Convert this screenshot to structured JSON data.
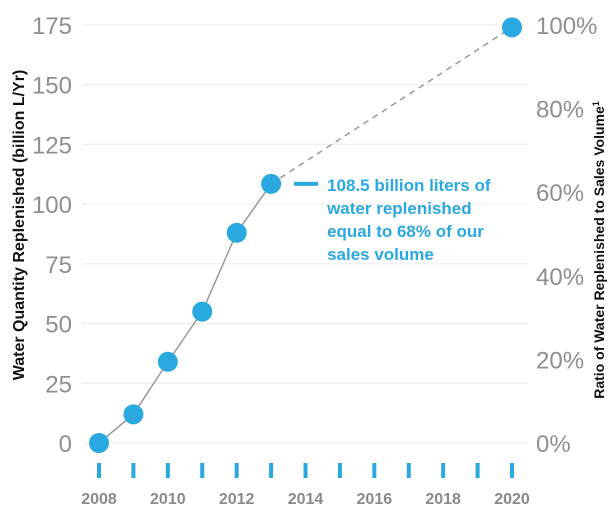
{
  "chart_data": {
    "type": "line",
    "x": [
      2008,
      2009,
      2010,
      2011,
      2012,
      2013,
      2020
    ],
    "series": [
      {
        "values": [
          0,
          12,
          34,
          55,
          88,
          108.5,
          174
        ],
        "projected_from_index": 5
      }
    ],
    "ylabel": "Water Quantity Replenished (billion L/Yr)",
    "ylabel_right": "Ratio of Water Replenished to Sales Volume",
    "ylabel_right_superscript": "1",
    "ylim": [
      0,
      175
    ],
    "yticks": [
      0,
      25,
      50,
      75,
      100,
      125,
      150,
      175
    ],
    "ylim_right": [
      0,
      100
    ],
    "yticks_right": [
      "0%",
      "20%",
      "40%",
      "60%",
      "80%",
      "100%"
    ],
    "xticks": [
      "2008",
      "2010",
      "2012",
      "2014",
      "2016",
      "2018",
      "2020"
    ],
    "xtick_marks": [
      2008,
      2009,
      2010,
      2011,
      2012,
      2013,
      2014,
      2015,
      2016,
      2017,
      2018,
      2019,
      2020
    ],
    "annotation": {
      "lines": [
        "108.5 billion liters of",
        "water replenished",
        "equal to 68% of our",
        "sales volume"
      ],
      "point_index": 5
    },
    "grid": true,
    "colors": {
      "marker": "#2aa9e0",
      "line": "#9a9a9a",
      "grid": "#ececec",
      "tick_mark": "#2aa9e0",
      "annotation": "#2aa9e0"
    }
  }
}
